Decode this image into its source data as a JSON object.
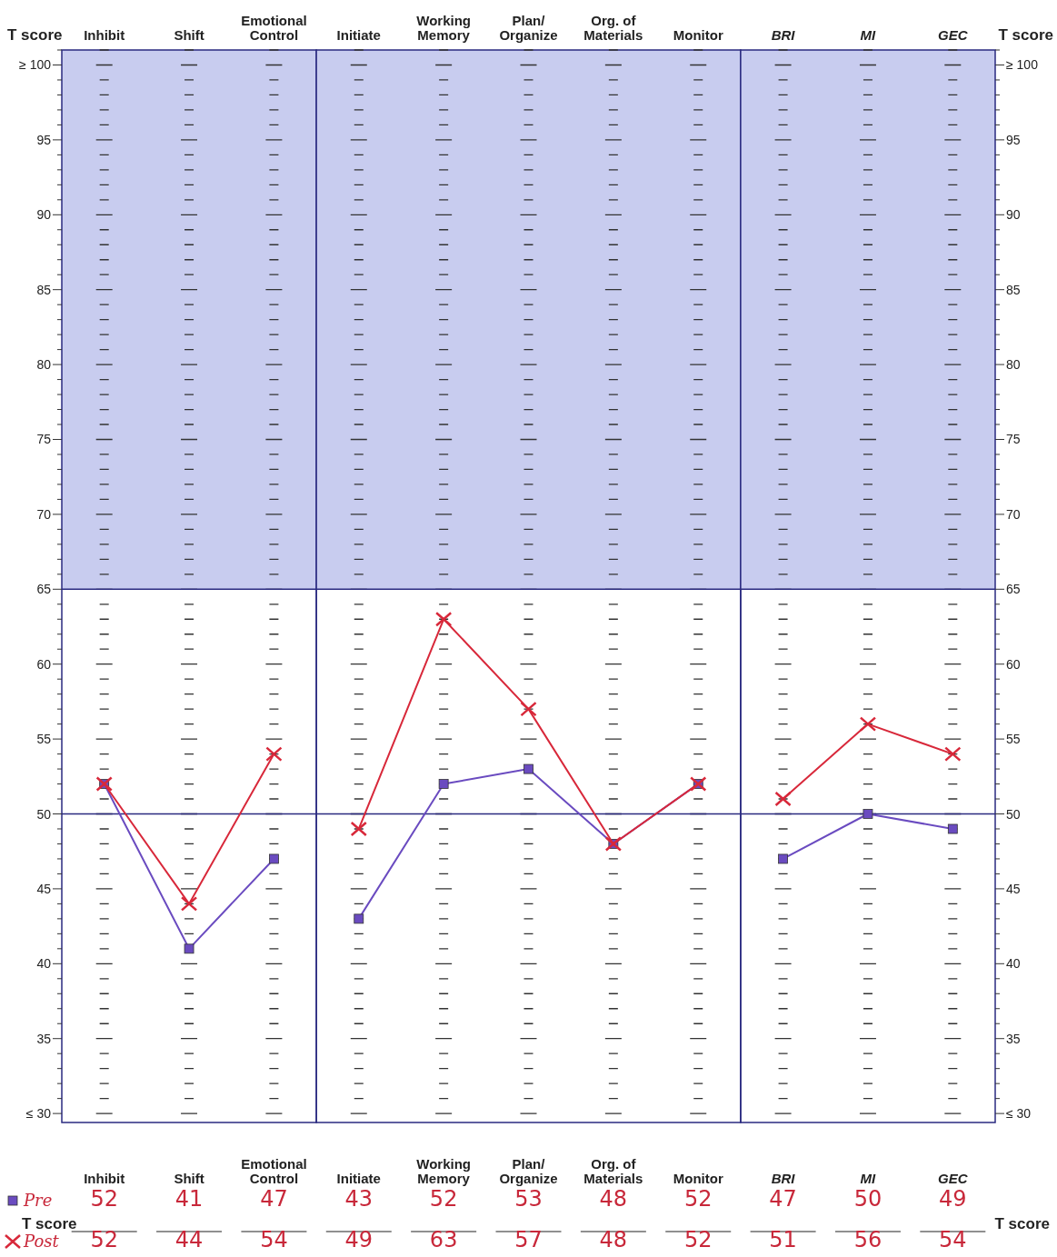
{
  "chart_data": [
    {
      "type": "line",
      "categories": [
        "Inhibit",
        "Shift",
        "Emotional\nControl"
      ],
      "ylabel": "T score",
      "ylim": [
        29.4,
        101
      ],
      "yticks": [
        {
          "value": 100,
          "label": "≥ 100"
        },
        95,
        90,
        85,
        80,
        75,
        70,
        65,
        60,
        55,
        50,
        45,
        40,
        35,
        {
          "value": 30,
          "label": "≤ 30"
        }
      ],
      "series": [
        {
          "name": "Pre",
          "color": "#6a4bc0",
          "marker": "square",
          "values": [
            52,
            41,
            47
          ]
        },
        {
          "name": "Post",
          "color": "#d8283a",
          "marker": "cross",
          "values": [
            52,
            44,
            54
          ]
        }
      ],
      "data_labels": true,
      "legend": "bottom left",
      "bands": [
        {
          "axis": "y",
          "from": 65,
          "to": 101,
          "color": "#c8ccef"
        }
      ],
      "ref_lines": [
        {
          "axis": "y",
          "value": 50
        },
        {
          "axis": "y",
          "value": 65
        }
      ],
      "annotations": [
        "T score"
      ]
    },
    {
      "type": "line",
      "categories": [
        "Initiate",
        "Working\nMemory",
        "Plan/\nOrganize",
        "Org. of\nMaterials",
        "Monitor"
      ],
      "ylim": [
        29.4,
        101
      ],
      "tick_labels": "x",
      "series": [
        {
          "color": "#6a4bc0",
          "marker": "square",
          "values": [
            43,
            52,
            53,
            48,
            52
          ]
        },
        {
          "color": "#d8283a",
          "marker": "cross",
          "values": [
            49,
            63,
            57,
            48,
            52
          ]
        }
      ],
      "data_labels": true,
      "bands": [
        {
          "axis": "y",
          "from": 65,
          "to": 101,
          "color": "#c8ccef"
        }
      ],
      "ref_lines": [
        {
          "axis": "y",
          "value": 50
        },
        {
          "axis": "y",
          "value": 65
        }
      ]
    },
    {
      "type": "line",
      "categories": [
        "BRI",
        "MI",
        "GEC"
      ],
      "y2label": "T score",
      "y2lim": [
        29.4,
        101
      ],
      "y2ticks": [
        {
          "value": 100,
          "label": "≥ 100"
        },
        95,
        90,
        85,
        80,
        75,
        70,
        65,
        60,
        55,
        50,
        45,
        40,
        35,
        {
          "value": 30,
          "label": "≤ 30"
        }
      ],
      "series": [
        {
          "color": "#6a4bc0",
          "marker": "square",
          "axis": "y2",
          "values": [
            47,
            50,
            49
          ]
        },
        {
          "color": "#d8283a",
          "marker": "cross",
          "axis": "y2",
          "values": [
            51,
            56,
            54
          ]
        }
      ],
      "data_labels": true,
      "bands": [
        {
          "axis": "y2",
          "from": 65,
          "to": 101,
          "color": "#c8ccef"
        }
      ],
      "ref_lines": [
        {
          "axis": "y2",
          "value": 50
        },
        {
          "axis": "y2",
          "value": 65
        }
      ],
      "annotations": [
        "T score"
      ]
    }
  ]
}
